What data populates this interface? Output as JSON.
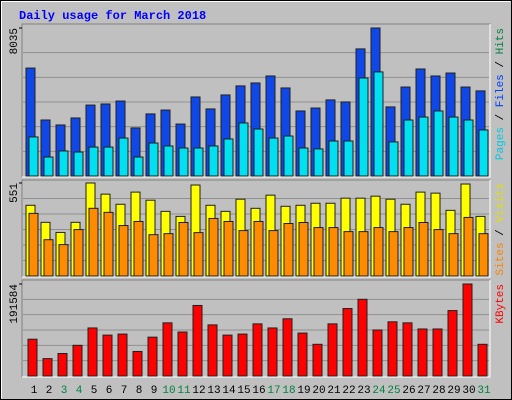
{
  "chart_data": {
    "type": "bar",
    "title": "Daily usage for March 2018",
    "categories": [
      "1",
      "2",
      "3",
      "4",
      "5",
      "6",
      "7",
      "8",
      "9",
      "10",
      "11",
      "12",
      "13",
      "14",
      "15",
      "16",
      "17",
      "18",
      "19",
      "20",
      "21",
      "22",
      "23",
      "24",
      "25",
      "26",
      "27",
      "28",
      "29",
      "30",
      "31"
    ],
    "category_colors": [
      "#000000",
      "#000000",
      "#008040",
      "#008040",
      "#000000",
      "#000000",
      "#000000",
      "#000000",
      "#000000",
      "#008040",
      "#008040",
      "#000000",
      "#000000",
      "#000000",
      "#000000",
      "#000000",
      "#008040",
      "#008040",
      "#000000",
      "#000000",
      "#000000",
      "#000000",
      "#000000",
      "#008040",
      "#008040",
      "#000000",
      "#000000",
      "#000000",
      "#000000",
      "#000000",
      "#008040"
    ],
    "panels": [
      {
        "ylim": [
          0,
          8035
        ],
        "yticks": [
          8035
        ],
        "legend": [
          {
            "text": "Pages",
            "color": "#00c8e0"
          },
          {
            "text": " / ",
            "color": "#000000"
          },
          {
            "text": "Files",
            "color": "#0040ff"
          },
          {
            "text": " / ",
            "color": "#000000"
          },
          {
            "text": "Hits",
            "color": "#008040"
          }
        ],
        "series": [
          {
            "color": "#1048e8",
            "values": [
              5860,
              3040,
              2770,
              3150,
              3850,
              3910,
              4070,
              2610,
              3370,
              3580,
              2820,
              4290,
              3640,
              4400,
              4890,
              5050,
              5430,
              4780,
              3530,
              3690,
              4130,
              4020,
              6900,
              8035,
              3750,
              4830,
              5810,
              5430,
              5590,
              4830,
              4620
            ]
          },
          {
            "color": "#00e0f0",
            "values": [
              2120,
              1030,
              1360,
              1300,
              1570,
              1570,
              2060,
              1030,
              1790,
              1630,
              1520,
              1520,
              1630,
              2010,
              2880,
              2550,
              2060,
              2170,
              1520,
              1470,
              1900,
              1900,
              5320,
              5650,
              1850,
              3040,
              3200,
              3530,
              3200,
              3040,
              2500
            ]
          }
        ]
      },
      {
        "ylim": [
          0,
          551
        ],
        "yticks": [
          551
        ],
        "legend": [
          {
            "text": "Sites",
            "color": "#ff8000"
          },
          {
            "text": " / ",
            "color": "#000000"
          },
          {
            "text": "Visits",
            "color": "#e0e000"
          }
        ],
        "series": [
          {
            "color": "#ffff00",
            "values": [
              419,
              318,
              258,
              318,
              551,
              485,
              425,
              497,
              449,
              383,
              353,
              539,
              419,
              383,
              455,
              401,
              479,
              413,
              419,
              431,
              431,
              461,
              461,
              473,
              455,
              425,
              497,
              491,
              389,
              545,
              353
            ]
          },
          {
            "color": "#ff8c00",
            "values": [
              371,
              215,
              186,
              275,
              401,
              377,
              299,
              323,
              245,
              251,
              317,
              257,
              341,
              323,
              269,
              323,
              269,
              311,
              317,
              287,
              287,
              263,
              263,
              287,
              263,
              287,
              317,
              275,
              251,
              347,
              251
            ]
          }
        ]
      },
      {
        "ylim": [
          0,
          191584
        ],
        "yticks": [
          191584
        ],
        "legend": [
          {
            "text": "KBytes",
            "color": "#ff0000"
          }
        ],
        "series": [
          {
            "color": "#ff0000",
            "values": [
              76640,
              36190,
              46840,
              63870,
              100060,
              85160,
              87290,
              51100,
              80900,
              110700,
              91550,
              146900,
              106450,
              85160,
              87290,
              108580,
              100060,
              119220,
              89420,
              66000,
              108580,
              140510,
              159680,
              95810,
              112840,
              110700,
              97930,
              97930,
              136260,
              191584,
              66000
            ]
          }
        ]
      }
    ]
  }
}
